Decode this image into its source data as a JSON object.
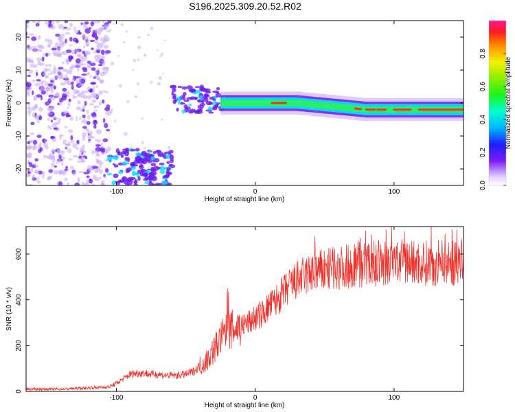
{
  "title": "S196.2025.309.20.52.R02",
  "colors": {
    "snr_line": "#f0302a",
    "spec_low": "#c9a8f5",
    "spec_mid": "#6a1cf0",
    "spec_ridge": "#00e5ff",
    "spec_peak": "#ff2a2a",
    "axis": "#000000"
  },
  "chart_data": [
    {
      "type": "heatmap",
      "title": "S196.2025.309.20.52.R02",
      "xlabel": "Height of straight line (km)",
      "ylabel": "Frequency (Hz)",
      "xlim": [
        -165,
        150
      ],
      "ylim": [
        -25,
        25
      ],
      "xticks": [
        -100,
        0,
        100
      ],
      "xtick_labels": [
        "-100",
        "0",
        "100"
      ],
      "yticks": [
        -20,
        -10,
        0,
        10,
        20
      ],
      "ytick_labels": [
        "-20",
        "-10",
        "0",
        "10",
        "20"
      ],
      "colorbar": {
        "label": "Normalized spectral amplitude",
        "range": [
          0,
          1
        ],
        "ticks": [
          0,
          0.2,
          0.4,
          0.6,
          0.8
        ],
        "tick_labels": [
          "0.0",
          "0.2",
          "0.4",
          "0.6",
          "0.8"
        ]
      },
      "features": [
        {
          "name": "diffuse noise",
          "x_range": [
            -165,
            -105
          ],
          "freq_range": [
            -25,
            25
          ],
          "amplitude": 0.15
        },
        {
          "name": "low-frequency patch",
          "x_range": [
            -105,
            -60
          ],
          "freq_range": [
            -25,
            -15
          ],
          "amplitude": 0.3
        },
        {
          "name": "near-zero onset",
          "x_range": [
            -60,
            -25
          ],
          "freq_range": [
            -3,
            5
          ],
          "amplitude": 0.3
        },
        {
          "name": "carrier ridge",
          "x_range": [
            -25,
            150
          ],
          "freq_center": [
            0,
            0,
            -2,
            -2
          ],
          "freq_center_x": [
            -25,
            30,
            80,
            150
          ],
          "amplitude": 0.9
        }
      ]
    },
    {
      "type": "line",
      "title": "",
      "xlabel": "Height of straight line (km)",
      "ylabel": "SNR (10 * v/v)",
      "xlim": [
        -165,
        150
      ],
      "ylim": [
        0,
        720
      ],
      "xticks": [
        -100,
        0,
        100
      ],
      "xtick_labels": [
        "-100",
        "0",
        "100"
      ],
      "yticks": [
        0,
        200,
        400,
        600
      ],
      "ytick_labels": [
        "0",
        "200",
        "400",
        "600"
      ],
      "series": [
        {
          "name": "SNR",
          "x": [
            -165,
            -140,
            -120,
            -105,
            -100,
            -95,
            -90,
            -85,
            -80,
            -75,
            -70,
            -65,
            -60,
            -55,
            -50,
            -45,
            -40,
            -35,
            -30,
            -25,
            -20,
            -15,
            -10,
            -5,
            0,
            5,
            10,
            15,
            20,
            25,
            30,
            40,
            50,
            60,
            70,
            80,
            90,
            100,
            110,
            120,
            130,
            140,
            150
          ],
          "y": [
            10,
            10,
            15,
            20,
            35,
            55,
            75,
            80,
            80,
            75,
            75,
            70,
            70,
            70,
            75,
            85,
            110,
            135,
            180,
            230,
            260,
            275,
            285,
            300,
            320,
            340,
            370,
            395,
            430,
            460,
            485,
            515,
            530,
            540,
            550,
            555,
            560,
            560,
            565,
            560,
            560,
            560,
            560
          ]
        }
      ]
    }
  ]
}
